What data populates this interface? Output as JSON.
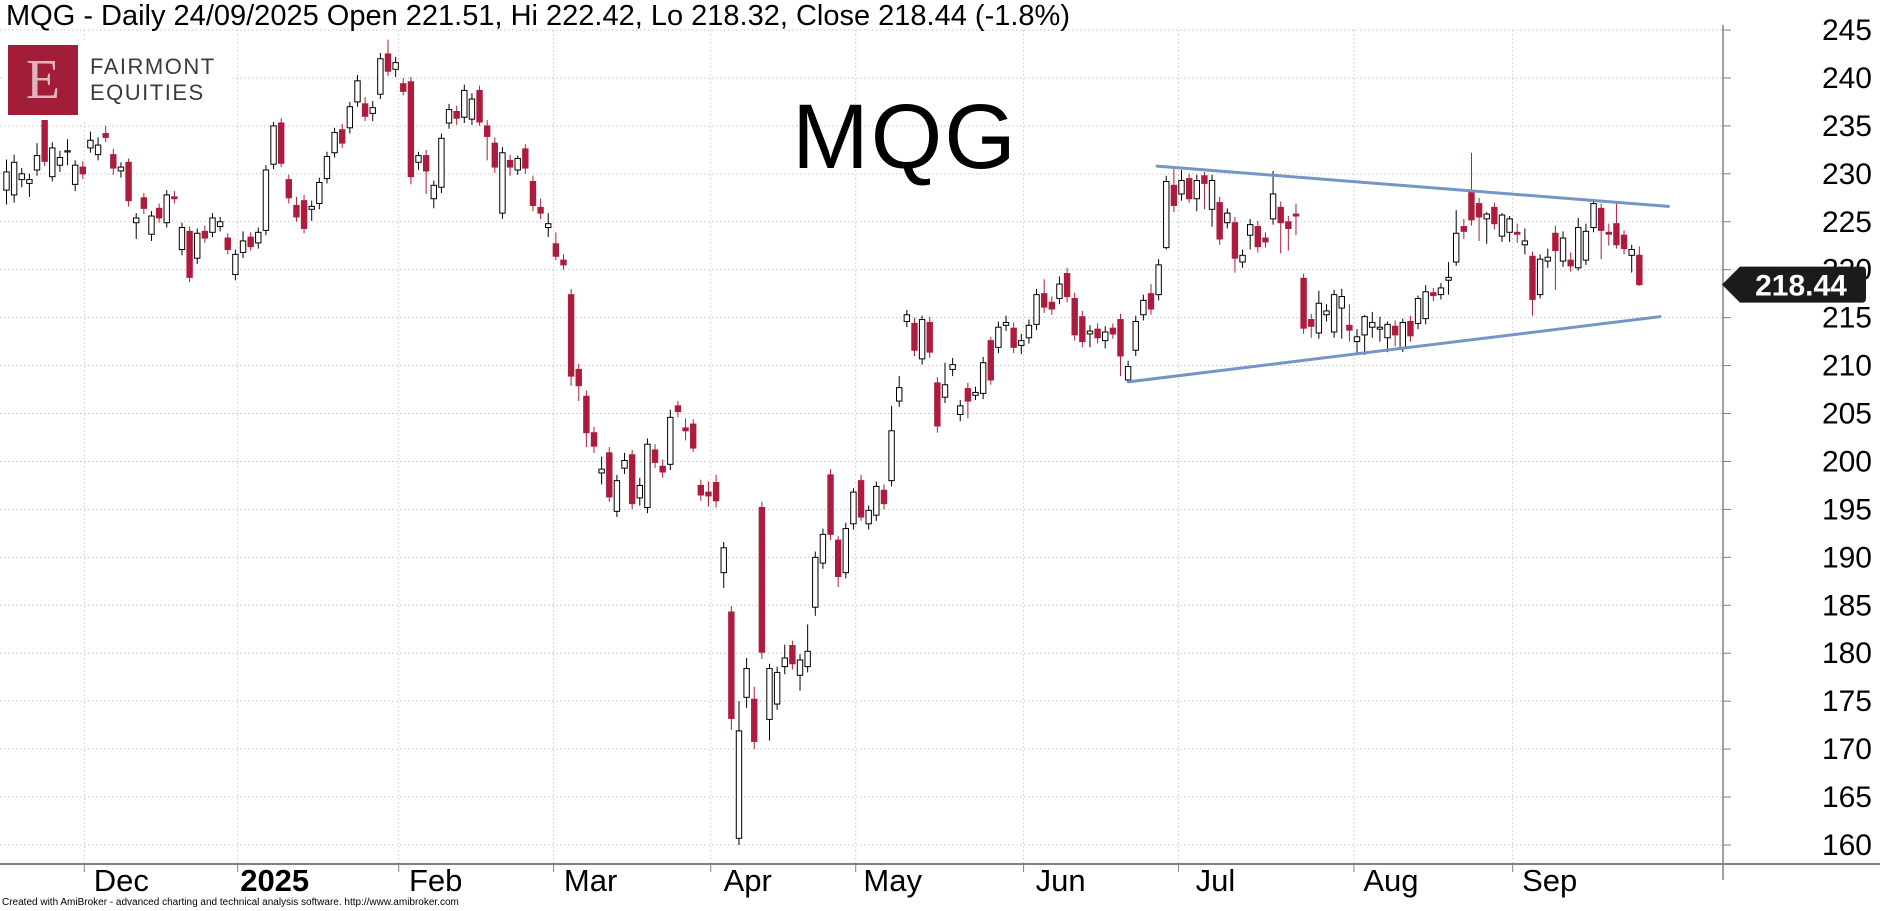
{
  "title": "MQG - Daily 24/09/2025 Open 221.51, Hi 222.42, Lo 218.32, Close 218.44 (-1.8%)",
  "logo": {
    "letter": "E",
    "line1": "FAIRMONT",
    "line2": "EQUITIES"
  },
  "watermark": "MQG",
  "price_tag": "218.44",
  "footer": "Created with AmiBroker - advanced charting and technical analysis software. http://www.amibroker.com",
  "colors": {
    "down_candle": "#ae1c3d",
    "up_candle_fill": "#ffffff",
    "candle_outline": "#000000",
    "trendline": "#7495c6",
    "grid": "#c6c6c6",
    "axis": "#808080",
    "tag_bg": "#1b1b1b",
    "tag_text": "#ffffff",
    "logo_bg": "#a21d38",
    "logo_letter": "#e0b4bc",
    "text": "#000000"
  },
  "y_axis": {
    "min": 160,
    "max": 245,
    "step": 5
  },
  "x_axis": {
    "months": [
      {
        "label": "Dec",
        "idx": 10.2,
        "bold": false
      },
      {
        "label": "2025",
        "idx": 30.3,
        "bold": true
      },
      {
        "label": "Feb",
        "idx": 51.4,
        "bold": false
      },
      {
        "label": "Mar",
        "idx": 71.7,
        "bold": false
      },
      {
        "label": "Apr",
        "idx": 92.3,
        "bold": false
      },
      {
        "label": "May",
        "idx": 111.3,
        "bold": false
      },
      {
        "label": "Jun",
        "idx": 133.3,
        "bold": false
      },
      {
        "label": "Jul",
        "idx": 153.6,
        "bold": false
      },
      {
        "label": "Aug",
        "idx": 176.6,
        "bold": false
      },
      {
        "label": "Sep",
        "idx": 197.4,
        "bold": false
      }
    ]
  },
  "chart_data": {
    "type": "candlestick",
    "symbol": "MQG",
    "interval": "Daily",
    "last_date": "24/09/2025",
    "last_ohlc": {
      "open": 221.51,
      "high": 222.42,
      "low": 218.32,
      "close": 218.44,
      "change_pct": -1.8
    },
    "ylim": [
      160,
      245
    ],
    "grid": true,
    "trendlines": [
      {
        "name": "upper-triangle-line",
        "i1": 150.8,
        "p1": 230.8,
        "i2": 217.8,
        "p2": 226.6
      },
      {
        "name": "lower-triangle-line",
        "i1": 147.0,
        "p1": 208.3,
        "i2": 216.7,
        "p2": 215.1
      }
    ],
    "ohlc": [
      [
        228.3,
        231.5,
        226.8,
        230.2
      ],
      [
        227.8,
        232.0,
        227.0,
        231.2
      ],
      [
        229.4,
        230.6,
        228.6,
        230.0
      ],
      [
        229.0,
        230.0,
        227.6,
        229.4
      ],
      [
        230.4,
        233.2,
        229.8,
        231.9
      ],
      [
        235.6,
        236.0,
        230.8,
        231.3
      ],
      [
        229.7,
        233.3,
        229.2,
        232.7
      ],
      [
        230.9,
        232.4,
        230.2,
        231.7
      ],
      [
        232.3,
        233.6,
        230.9,
        232.4
      ],
      [
        228.9,
        231.4,
        228.2,
        230.9
      ],
      [
        230.7,
        231.3,
        229.5,
        230.0
      ],
      [
        232.7,
        234.4,
        232.2,
        233.5
      ],
      [
        232.0,
        233.8,
        231.4,
        233.0
      ],
      [
        234.2,
        235.0,
        233.3,
        233.8
      ],
      [
        232.0,
        232.6,
        229.9,
        230.6
      ],
      [
        230.3,
        231.2,
        229.6,
        230.7
      ],
      [
        231.2,
        231.6,
        226.6,
        227.2
      ],
      [
        224.9,
        225.9,
        223.2,
        225.4
      ],
      [
        227.5,
        228.0,
        225.8,
        226.4
      ],
      [
        223.7,
        226.1,
        223.0,
        225.6
      ],
      [
        226.4,
        226.9,
        224.9,
        225.4
      ],
      [
        224.9,
        228.3,
        224.4,
        227.8
      ],
      [
        227.6,
        228.2,
        226.9,
        227.4
      ],
      [
        222.1,
        224.9,
        221.5,
        224.4
      ],
      [
        224.0,
        224.5,
        218.7,
        219.2
      ],
      [
        221.2,
        224.3,
        220.6,
        223.8
      ],
      [
        224.0,
        224.6,
        222.8,
        223.3
      ],
      [
        223.9,
        225.9,
        223.4,
        225.4
      ],
      [
        224.5,
        225.5,
        224.0,
        225.0
      ],
      [
        223.3,
        223.8,
        221.6,
        222.1
      ],
      [
        219.5,
        222.1,
        218.9,
        221.6
      ],
      [
        221.8,
        224.0,
        221.2,
        223.0
      ],
      [
        223.4,
        223.9,
        222.0,
        222.4
      ],
      [
        222.8,
        224.4,
        222.2,
        223.9
      ],
      [
        224.1,
        230.9,
        223.6,
        230.4
      ],
      [
        231.0,
        235.4,
        230.5,
        235.0
      ],
      [
        235.3,
        235.8,
        230.7,
        231.1
      ],
      [
        229.4,
        229.9,
        226.9,
        227.5
      ],
      [
        226.7,
        227.6,
        225.0,
        225.5
      ],
      [
        227.2,
        227.8,
        223.8,
        224.3
      ],
      [
        226.3,
        227.2,
        225.1,
        226.6
      ],
      [
        226.9,
        229.6,
        226.3,
        229.1
      ],
      [
        229.5,
        232.3,
        229.0,
        231.8
      ],
      [
        232.2,
        234.8,
        231.7,
        234.3
      ],
      [
        234.6,
        235.2,
        232.7,
        233.2
      ],
      [
        234.8,
        237.5,
        234.2,
        237.0
      ],
      [
        237.5,
        240.3,
        237.0,
        239.7
      ],
      [
        237.3,
        238.0,
        235.5,
        236.0
      ],
      [
        236.3,
        237.6,
        235.5,
        236.9
      ],
      [
        238.3,
        242.6,
        237.8,
        242.0
      ],
      [
        242.5,
        244.0,
        240.2,
        240.7
      ],
      [
        240.9,
        242.2,
        240.1,
        241.6
      ],
      [
        239.4,
        240.0,
        238.2,
        238.6
      ],
      [
        239.6,
        240.1,
        228.9,
        229.7
      ],
      [
        231.2,
        232.3,
        230.4,
        231.9
      ],
      [
        231.9,
        232.5,
        227.9,
        230.3
      ],
      [
        227.4,
        229.3,
        226.4,
        228.8
      ],
      [
        228.6,
        234.2,
        228.0,
        233.7
      ],
      [
        235.3,
        237.3,
        234.7,
        236.7
      ],
      [
        236.5,
        237.1,
        235.1,
        235.8
      ],
      [
        235.9,
        239.3,
        235.3,
        238.7
      ],
      [
        235.7,
        238.4,
        235.1,
        237.8
      ],
      [
        238.7,
        239.2,
        235.0,
        235.4
      ],
      [
        235.0,
        235.6,
        231.4,
        233.9
      ],
      [
        233.2,
        233.8,
        230.1,
        230.7
      ],
      [
        225.9,
        232.8,
        225.3,
        232.2
      ],
      [
        231.4,
        232.0,
        229.8,
        230.7
      ],
      [
        230.4,
        231.9,
        229.9,
        231.6
      ],
      [
        232.6,
        233.1,
        230.0,
        230.6
      ],
      [
        229.2,
        229.8,
        226.1,
        226.7
      ],
      [
        226.5,
        227.4,
        225.3,
        225.9
      ],
      [
        224.4,
        225.9,
        223.4,
        224.8
      ],
      [
        222.7,
        223.9,
        221.0,
        221.4
      ],
      [
        221.0,
        221.6,
        220.0,
        220.5
      ],
      [
        217.4,
        218.0,
        207.9,
        208.9
      ],
      [
        209.6,
        210.2,
        206.3,
        207.9
      ],
      [
        206.8,
        207.4,
        201.5,
        203.0
      ],
      [
        203.0,
        203.6,
        200.9,
        201.6
      ],
      [
        198.8,
        200.5,
        197.6,
        199.2
      ],
      [
        200.9,
        201.5,
        195.8,
        196.3
      ],
      [
        194.8,
        198.6,
        194.2,
        198.0
      ],
      [
        199.3,
        200.9,
        198.7,
        200.1
      ],
      [
        200.7,
        201.2,
        195.0,
        195.6
      ],
      [
        196.2,
        198.3,
        195.4,
        197.5
      ],
      [
        195.2,
        202.4,
        194.6,
        201.8
      ],
      [
        201.2,
        201.8,
        199.3,
        199.9
      ],
      [
        199.5,
        200.2,
        198.3,
        198.9
      ],
      [
        199.7,
        205.4,
        199.1,
        204.6
      ],
      [
        205.8,
        206.3,
        204.6,
        205.2
      ],
      [
        203.5,
        204.5,
        202.2,
        203.2
      ],
      [
        203.9,
        204.4,
        201.0,
        201.4
      ],
      [
        197.5,
        198.1,
        195.9,
        196.5
      ],
      [
        196.8,
        197.9,
        195.3,
        196.4
      ],
      [
        197.8,
        198.6,
        195.2,
        195.9
      ],
      [
        188.4,
        191.6,
        186.8,
        191.0
      ],
      [
        184.3,
        184.9,
        172.0,
        173.2
      ],
      [
        160.7,
        175.0,
        160.0,
        171.9
      ],
      [
        175.4,
        179.5,
        174.3,
        178.4
      ],
      [
        175.2,
        176.5,
        170.0,
        170.8
      ],
      [
        195.2,
        195.8,
        179.4,
        180.1
      ],
      [
        173.1,
        178.9,
        170.9,
        178.4
      ],
      [
        174.7,
        178.6,
        174.1,
        178.0
      ],
      [
        178.6,
        180.9,
        177.8,
        179.5
      ],
      [
        180.8,
        181.3,
        178.3,
        178.9
      ],
      [
        177.7,
        179.9,
        176.1,
        179.3
      ],
      [
        178.6,
        183.0,
        178.0,
        180.2
      ],
      [
        184.8,
        190.6,
        183.9,
        190.0
      ],
      [
        189.4,
        193.0,
        188.8,
        192.4
      ],
      [
        198.6,
        199.2,
        191.8,
        192.4
      ],
      [
        191.8,
        192.2,
        186.9,
        188.0
      ],
      [
        188.4,
        193.6,
        187.8,
        193.0
      ],
      [
        193.5,
        197.2,
        192.9,
        196.8
      ],
      [
        198.0,
        198.6,
        193.8,
        194.2
      ],
      [
        193.5,
        195.4,
        192.9,
        194.9
      ],
      [
        194.4,
        197.9,
        193.8,
        197.4
      ],
      [
        197.0,
        197.6,
        195.0,
        195.6
      ],
      [
        198.0,
        205.8,
        197.4,
        203.2
      ],
      [
        206.3,
        208.9,
        205.7,
        207.7
      ],
      [
        214.6,
        215.8,
        214.0,
        215.3
      ],
      [
        214.4,
        215.0,
        211.0,
        211.6
      ],
      [
        210.7,
        215.2,
        210.1,
        214.8
      ],
      [
        214.5,
        215.1,
        210.8,
        211.4
      ],
      [
        208.2,
        208.8,
        203.0,
        203.7
      ],
      [
        206.7,
        210.3,
        206.1,
        208.0
      ],
      [
        209.6,
        210.8,
        208.9,
        210.1
      ],
      [
        204.9,
        206.4,
        204.2,
        205.8
      ],
      [
        207.6,
        208.2,
        204.5,
        206.3
      ],
      [
        206.9,
        207.8,
        206.4,
        207.2
      ],
      [
        207.1,
        210.9,
        206.5,
        210.3
      ],
      [
        212.6,
        213.0,
        208.0,
        208.5
      ],
      [
        211.9,
        214.6,
        211.3,
        214.0
      ],
      [
        214.2,
        215.2,
        213.6,
        214.5
      ],
      [
        213.9,
        214.5,
        211.3,
        211.9
      ],
      [
        212.1,
        213.3,
        211.2,
        212.6
      ],
      [
        212.9,
        214.8,
        212.3,
        214.2
      ],
      [
        214.3,
        218.0,
        213.7,
        217.4
      ],
      [
        217.5,
        219.0,
        215.5,
        216.1
      ],
      [
        216.6,
        217.2,
        215.3,
        215.9
      ],
      [
        217.0,
        219.3,
        216.4,
        218.5
      ],
      [
        219.6,
        220.2,
        216.6,
        217.2
      ],
      [
        217.0,
        217.6,
        212.6,
        213.2
      ],
      [
        215.1,
        215.7,
        211.9,
        212.5
      ],
      [
        213.3,
        214.2,
        211.9,
        213.6
      ],
      [
        213.8,
        214.4,
        212.3,
        212.9
      ],
      [
        212.6,
        214.1,
        211.8,
        213.5
      ],
      [
        213.9,
        214.4,
        212.8,
        213.3
      ],
      [
        214.8,
        215.4,
        208.9,
        211.0
      ],
      [
        208.5,
        210.5,
        208.3,
        209.9
      ],
      [
        211.6,
        215.2,
        211.0,
        214.6
      ],
      [
        215.3,
        217.4,
        214.7,
        216.8
      ],
      [
        217.5,
        218.5,
        215.3,
        215.9
      ],
      [
        217.4,
        221.1,
        216.8,
        220.5
      ],
      [
        222.3,
        229.8,
        222.1,
        229.2
      ],
      [
        228.8,
        230.5,
        226.0,
        226.7
      ],
      [
        227.9,
        230.4,
        227.2,
        229.3
      ],
      [
        229.5,
        230.0,
        227.0,
        227.4
      ],
      [
        227.4,
        229.9,
        226.1,
        229.3
      ],
      [
        229.8,
        230.2,
        226.3,
        229.0
      ],
      [
        226.3,
        229.9,
        224.5,
        229.3
      ],
      [
        227.0,
        227.6,
        222.6,
        223.2
      ],
      [
        224.9,
        226.4,
        224.3,
        225.9
      ],
      [
        224.9,
        225.5,
        219.7,
        221.2
      ],
      [
        220.8,
        222.1,
        220.2,
        221.5
      ],
      [
        223.6,
        225.3,
        222.1,
        224.7
      ],
      [
        224.5,
        225.1,
        221.8,
        222.4
      ],
      [
        223.3,
        223.9,
        222.3,
        222.9
      ],
      [
        225.3,
        230.3,
        224.7,
        227.9
      ],
      [
        226.5,
        227.1,
        221.7,
        224.9
      ],
      [
        225.0,
        225.6,
        222.0,
        224.3
      ],
      [
        225.8,
        226.9,
        223.6,
        225.6
      ],
      [
        219.1,
        219.6,
        213.3,
        213.9
      ],
      [
        214.8,
        215.4,
        212.9,
        214.1
      ],
      [
        213.4,
        217.8,
        212.8,
        216.5
      ],
      [
        215.3,
        216.4,
        214.6,
        215.7
      ],
      [
        213.5,
        217.9,
        212.9,
        217.4
      ],
      [
        216.0,
        218.0,
        212.8,
        217.2
      ],
      [
        214.2,
        216.4,
        212.5,
        213.7
      ],
      [
        212.5,
        213.8,
        211.1,
        213.0
      ],
      [
        213.2,
        215.3,
        211.1,
        215.1
      ],
      [
        214.0,
        215.6,
        212.9,
        214.5
      ],
      [
        213.8,
        215.1,
        212.5,
        214.0
      ],
      [
        212.9,
        214.6,
        211.4,
        214.3
      ],
      [
        214.1,
        214.7,
        212.0,
        213.2
      ],
      [
        211.8,
        214.9,
        211.4,
        214.5
      ],
      [
        214.6,
        215.2,
        212.5,
        213.1
      ],
      [
        214.4,
        217.3,
        213.8,
        217.0
      ],
      [
        214.9,
        218.4,
        214.3,
        217.7
      ],
      [
        217.6,
        218.1,
        216.7,
        217.3
      ],
      [
        217.4,
        218.6,
        216.9,
        218.1
      ],
      [
        218.9,
        220.8,
        217.4,
        219.2
      ],
      [
        220.8,
        226.2,
        220.4,
        223.8
      ],
      [
        224.5,
        225.3,
        223.2,
        224.0
      ],
      [
        228.1,
        232.2,
        224.6,
        225.2
      ],
      [
        226.9,
        227.5,
        223.0,
        225.5
      ],
      [
        225.3,
        226.0,
        222.7,
        225.8
      ],
      [
        226.5,
        227.0,
        224.2,
        224.8
      ],
      [
        223.5,
        225.9,
        222.9,
        225.7
      ],
      [
        223.9,
        225.6,
        222.9,
        225.3
      ],
      [
        223.9,
        224.8,
        222.8,
        223.7
      ],
      [
        222.6,
        224.3,
        221.6,
        223.0
      ],
      [
        221.4,
        221.9,
        215.2,
        216.9
      ],
      [
        217.4,
        221.6,
        217.0,
        221.1
      ],
      [
        220.9,
        222.2,
        220.2,
        221.3
      ],
      [
        223.8,
        224.6,
        217.9,
        222.0
      ],
      [
        220.9,
        224.0,
        220.3,
        223.3
      ],
      [
        221.0,
        221.8,
        219.8,
        220.4
      ],
      [
        220.2,
        225.4,
        219.9,
        224.4
      ],
      [
        221.0,
        224.8,
        220.5,
        224.0
      ],
      [
        224.4,
        227.2,
        223.9,
        226.9
      ],
      [
        226.4,
        226.9,
        221.1,
        224.1
      ],
      [
        223.9,
        224.8,
        222.5,
        223.7
      ],
      [
        224.8,
        227.1,
        222.2,
        222.6
      ],
      [
        223.6,
        224.1,
        221.6,
        222.2
      ],
      [
        221.5,
        222.6,
        219.7,
        222.1
      ],
      [
        221.51,
        222.42,
        218.32,
        218.44
      ]
    ]
  }
}
